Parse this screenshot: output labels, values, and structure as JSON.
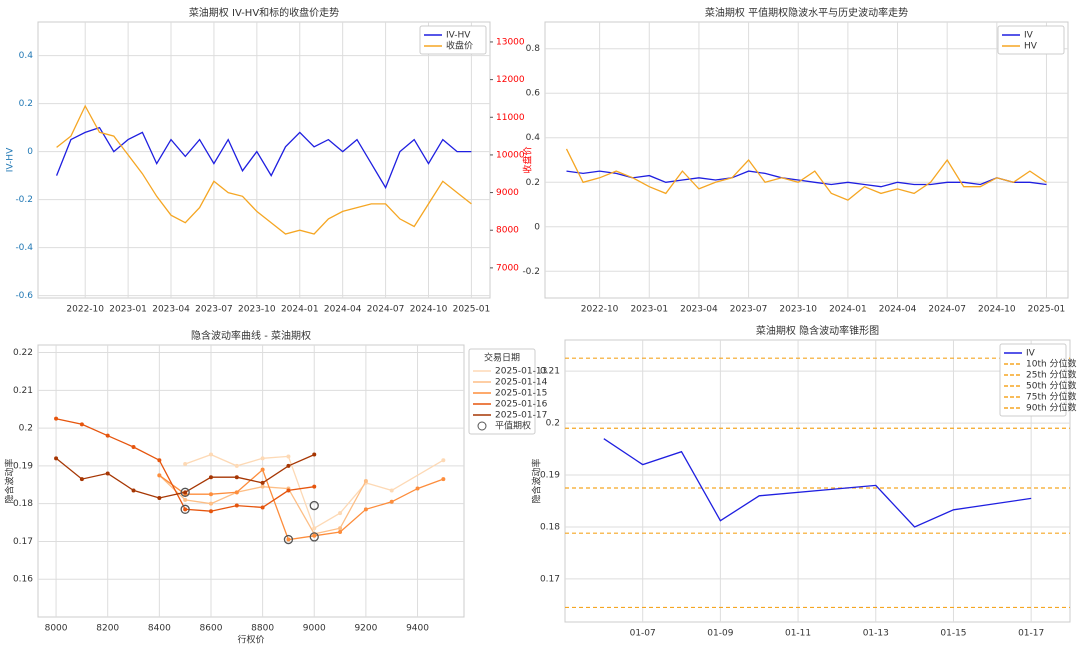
{
  "chart_data": [
    {
      "type": "line",
      "title": "菜油期权 IV-HV和标的收盘价走势",
      "ylabel": "IV-HV",
      "y2label": "收盘价",
      "ycolor": "#1f77b4",
      "y2color": "red",
      "x": [
        "2022-08",
        "2022-09",
        "2022-10",
        "2022-11",
        "2022-12",
        "2023-01",
        "2023-02",
        "2023-03",
        "2023-04",
        "2023-05",
        "2023-06",
        "2023-07",
        "2023-08",
        "2023-09",
        "2023-10",
        "2023-11",
        "2023-12",
        "2024-01",
        "2024-02",
        "2024-03",
        "2024-04",
        "2024-05",
        "2024-06",
        "2024-07",
        "2024-08",
        "2024-09",
        "2024-10",
        "2024-11",
        "2024-12",
        "2025-01"
      ],
      "series": [
        {
          "name": "IV-HV",
          "color": "#1f1fe0",
          "values": [
            -0.1,
            0.05,
            0.08,
            0.1,
            0.0,
            0.05,
            0.08,
            -0.05,
            0.05,
            -0.02,
            0.05,
            -0.05,
            0.05,
            -0.08,
            0.0,
            -0.1,
            0.02,
            0.08,
            0.02,
            0.05,
            0.0,
            0.05,
            -0.05,
            -0.15,
            0.0,
            0.05,
            -0.05,
            0.05,
            0.0,
            0.0
          ]
        },
        {
          "name": "收盘价",
          "color": "#f5a623",
          "axis": "y2",
          "values": [
            10200,
            10500,
            11300,
            10600,
            10500,
            10000,
            9500,
            8900,
            8400,
            8200,
            8600,
            9300,
            9000,
            8900,
            8500,
            8200,
            7900,
            8000,
            7900,
            8300,
            8500,
            8600,
            8700,
            8700,
            8300,
            8100,
            8700,
            9300,
            9000,
            8700
          ]
        }
      ],
      "ylim": [
        -0.61,
        0.54
      ],
      "yticks": [
        -0.6,
        -0.4,
        -0.2,
        0.0,
        0.2,
        0.4
      ],
      "y2lim": [
        6200,
        13530
      ],
      "y2ticks": [
        7000,
        8000,
        9000,
        10000,
        11000,
        12000,
        13000
      ],
      "xticks": [
        "2022-10",
        "2023-01",
        "2023-04",
        "2023-07",
        "2023-10",
        "2024-01",
        "2024-04",
        "2024-07",
        "2024-10",
        "2025-01"
      ],
      "grid": true,
      "legend": "upper right"
    },
    {
      "type": "line",
      "title": "菜油期权 平值期权隐波水平与历史波动率走势",
      "x": [
        "2022-08",
        "2022-09",
        "2022-10",
        "2022-11",
        "2022-12",
        "2023-01",
        "2023-02",
        "2023-03",
        "2023-04",
        "2023-05",
        "2023-06",
        "2023-07",
        "2023-08",
        "2023-09",
        "2023-10",
        "2023-11",
        "2023-12",
        "2024-01",
        "2024-02",
        "2024-03",
        "2024-04",
        "2024-05",
        "2024-06",
        "2024-07",
        "2024-08",
        "2024-09",
        "2024-10",
        "2024-11",
        "2024-12",
        "2025-01"
      ],
      "series": [
        {
          "name": "IV",
          "color": "#1f1fe0",
          "values": [
            0.25,
            0.24,
            0.25,
            0.24,
            0.22,
            0.23,
            0.2,
            0.21,
            0.22,
            0.21,
            0.22,
            0.25,
            0.24,
            0.22,
            0.21,
            0.2,
            0.19,
            0.2,
            0.19,
            0.18,
            0.2,
            0.19,
            0.19,
            0.2,
            0.2,
            0.19,
            0.22,
            0.2,
            0.2,
            0.19
          ]
        },
        {
          "name": "HV",
          "color": "#f5a623",
          "values": [
            0.35,
            0.2,
            0.22,
            0.25,
            0.22,
            0.18,
            0.15,
            0.25,
            0.17,
            0.2,
            0.22,
            0.3,
            0.2,
            0.22,
            0.2,
            0.25,
            0.15,
            0.12,
            0.18,
            0.15,
            0.17,
            0.15,
            0.2,
            0.3,
            0.18,
            0.18,
            0.22,
            0.2,
            0.25,
            0.2
          ]
        }
      ],
      "ylim": [
        -0.32,
        0.92
      ],
      "yticks": [
        -0.2,
        0.0,
        0.2,
        0.4,
        0.6,
        0.8
      ],
      "xticks": [
        "2022-10",
        "2023-01",
        "2023-04",
        "2023-07",
        "2023-10",
        "2024-01",
        "2024-04",
        "2024-07",
        "2024-10",
        "2025-01"
      ],
      "grid": true,
      "legend": "upper right"
    },
    {
      "type": "line",
      "title": "隐含波动率曲线 - 菜油期权",
      "xlabel": "行权价",
      "ylabel": "隐含波动率",
      "legend_title": "交易日期",
      "markers": true,
      "series": [
        {
          "name": "2025-01-13",
          "color": "#fdd9b5",
          "x": [
            8500,
            8600,
            8700,
            8800,
            8900,
            9000,
            9100,
            9200,
            9300,
            9500
          ],
          "values": [
            0.1905,
            0.193,
            0.19,
            0.192,
            0.1925,
            0.1735,
            0.1775,
            0.1855,
            0.1835,
            0.1915
          ]
        },
        {
          "name": "2025-01-14",
          "color": "#fdbe85",
          "x": [
            8400,
            8500,
            8600,
            8700,
            8800,
            8900,
            9000,
            9100,
            9200
          ],
          "values": [
            0.1875,
            0.181,
            0.18,
            0.183,
            0.1845,
            0.184,
            0.172,
            0.1735,
            0.186
          ]
        },
        {
          "name": "2025-01-15",
          "color": "#fd8d3c",
          "x": [
            8400,
            8500,
            8600,
            8700,
            8800,
            8900,
            9000,
            9100,
            9200,
            9300,
            9400,
            9500
          ],
          "values": [
            0.1875,
            0.1825,
            0.1825,
            0.183,
            0.189,
            0.1705,
            0.1715,
            0.1725,
            0.1785,
            0.1805,
            0.184,
            0.1865
          ]
        },
        {
          "name": "2025-01-16",
          "color": "#e6550d",
          "x": [
            8000,
            8100,
            8200,
            8300,
            8400,
            8500,
            8600,
            8700,
            8800,
            8900,
            9000
          ],
          "values": [
            0.2025,
            0.201,
            0.198,
            0.195,
            0.1915,
            0.1785,
            0.178,
            0.1795,
            0.179,
            0.1835,
            0.1845
          ]
        },
        {
          "name": "2025-01-17",
          "color": "#a63603",
          "x": [
            8000,
            8100,
            8200,
            8300,
            8400,
            8500,
            8600,
            8700,
            8800,
            8900,
            9000
          ],
          "values": [
            0.192,
            0.1865,
            0.188,
            0.1835,
            0.1815,
            0.183,
            0.187,
            0.187,
            0.1855,
            0.19,
            0.193
          ]
        },
        {
          "name": "平值期权",
          "type": "scatter",
          "color": "#555555",
          "x": [
            8500,
            8500,
            9000,
            8900,
            9000
          ],
          "values": [
            0.183,
            0.1785,
            0.1795,
            0.1705,
            0.1712
          ]
        }
      ],
      "xlim": [
        7930,
        9580
      ],
      "xticks": [
        8000,
        8200,
        8400,
        8600,
        8800,
        9000,
        9200,
        9400
      ],
      "ylim": [
        0.15,
        0.222
      ],
      "yticks": [
        0.16,
        0.17,
        0.18,
        0.19,
        0.2,
        0.21,
        0.22
      ],
      "grid": true,
      "legend": "outside right"
    },
    {
      "type": "line",
      "title": "菜油期权 隐含波动率锥形图",
      "ylabel": "隐含波动率",
      "x": [
        "01-06",
        "01-07",
        "01-08",
        "01-09",
        "01-10",
        "01-13",
        "01-14",
        "01-15",
        "01-17"
      ],
      "series": [
        {
          "name": "IV",
          "color": "#1f1fe0",
          "values": [
            0.197,
            0.192,
            0.1945,
            0.1812,
            0.186,
            0.188,
            0.18,
            0.1833,
            0.1855
          ]
        }
      ],
      "hlines": [
        {
          "name": "10th 分位数",
          "color": "#f5a623",
          "value": 0.1645
        },
        {
          "name": "25th 分位数",
          "color": "#f5a623",
          "value": 0.1788
        },
        {
          "name": "50th 分位数",
          "color": "#f5a623",
          "value": 0.1875
        },
        {
          "name": "75th 分位数",
          "color": "#f5a623",
          "value": 0.199
        },
        {
          "name": "90th 分位数",
          "color": "#f5a623",
          "value": 0.2125
        }
      ],
      "xlim": [
        "01-05",
        "01-18"
      ],
      "xticks": [
        "01-07",
        "01-09",
        "01-11",
        "01-13",
        "01-15",
        "01-17"
      ],
      "ylim": [
        0.1617,
        0.216
      ],
      "yticks": [
        0.17,
        0.18,
        0.19,
        0.2,
        0.21
      ],
      "grid": true,
      "legend": "upper right"
    }
  ]
}
